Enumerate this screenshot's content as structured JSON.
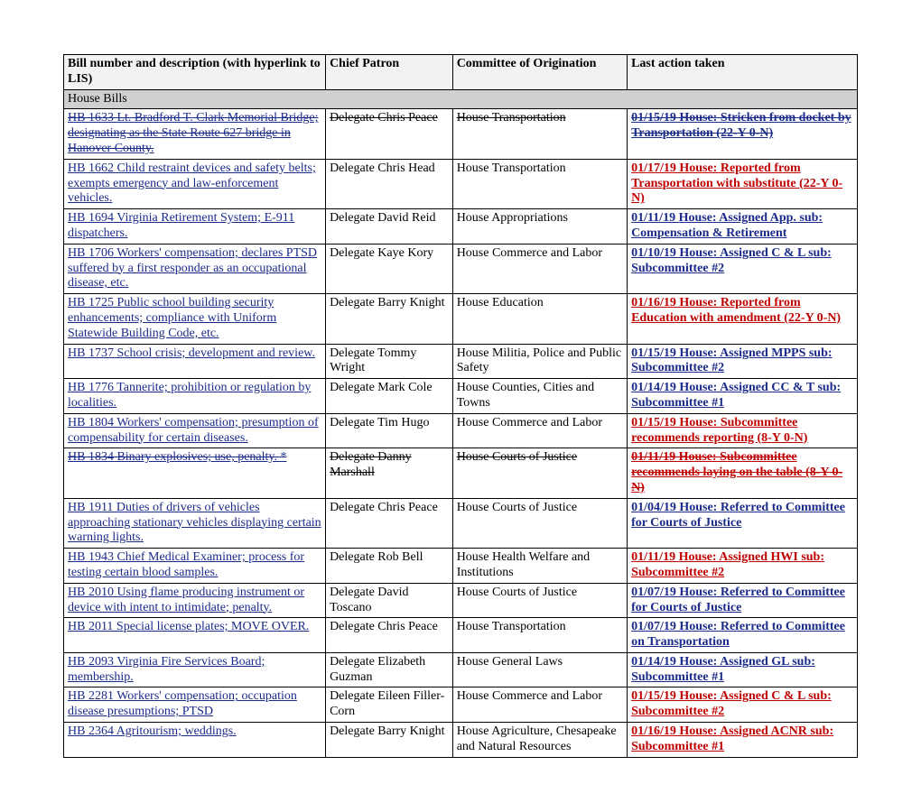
{
  "header": {
    "bill": "Bill number and description (with hyperlink to LIS)",
    "patron": "Chief Patron",
    "committee": "Committee of Origination",
    "action": "Last action taken"
  },
  "section_label": "House Bills",
  "rows": [
    {
      "bill": "HB 1633 Lt. Bradford T. Clark Memorial Bridge; designating as the State Route 627 bridge in Hanover County.",
      "patron": "Delegate Chris Peace",
      "committee": "House Transportation",
      "action": "01/15/19 House: Stricken from docket by Transportation (22-Y 0-N)",
      "bill_class": "strikethrough",
      "patron_class": "strikethrough-plain",
      "committee_class": "strikethrough-plain",
      "action_class": "action-struck"
    },
    {
      "bill": "HB 1662 Child restraint devices and safety belts; exempts emergency and law-enforcement vehicles.",
      "patron": "Delegate Chris Head",
      "committee": "House Transportation",
      "action": "01/17/19  House: Reported from Transportation with substitute (22-Y 0-N)",
      "bill_class": "bill-link",
      "action_class": "action-red"
    },
    {
      "bill": "HB 1694 Virginia Retirement System; E-911 dispatchers.",
      "patron": "Delegate David Reid",
      "committee": "House Appropriations",
      "action": "01/11/19 House: Assigned App. sub: Compensation & Retirement",
      "bill_class": "bill-link",
      "action_class": "action-link"
    },
    {
      "bill": "HB 1706 Workers' compensation; declares PTSD suffered by a first responder as an occupational disease, etc.",
      "patron": "Delegate Kaye Kory",
      "committee": "House Commerce and Labor",
      "action": "01/10/19 House: Assigned C & L sub: Subcommittee #2",
      "bill_class": "bill-link",
      "action_class": "action-link"
    },
    {
      "bill": "HB 1725 Public school building security enhancements; compliance with Uniform Statewide Building Code, etc.",
      "patron": "Delegate Barry Knight",
      "committee": "House Education",
      "action": "01/16/19  House: Reported from Education with amendment (22-Y 0-N)",
      "bill_class": "bill-link",
      "action_class": "action-red"
    },
    {
      "bill": "HB 1737 School crisis; development and review.",
      "patron": "Delegate Tommy Wright",
      "committee": "House Militia, Police and Public Safety",
      "action": "01/15/19 House: Assigned MPPS sub: Subcommittee #2",
      "bill_class": "bill-link",
      "action_class": "action-link"
    },
    {
      "bill": "HB 1776 Tannerite; prohibition or regulation by localities.",
      "patron": "Delegate Mark Cole",
      "committee": "House Counties, Cities and Towns",
      "action": "01/14/19 House: Assigned CC & T sub: Subcommittee #1",
      "bill_class": "bill-link",
      "action_class": "action-link"
    },
    {
      "bill": "HB 1804 Workers' compensation; presumption of compensability for certain diseases.",
      "patron": "Delegate Tim Hugo",
      "committee": "House Commerce and Labor",
      "action": "01/15/19 House: Subcommittee recommends reporting (8-Y 0-N)",
      "bill_class": "bill-link",
      "action_class": "action-red"
    },
    {
      "bill": "HB 1834 Binary explosives; use, penalty. *",
      "patron": "Delegate Danny Marshall",
      "committee": "House Courts of Justice",
      "action": "01/11/19 House: Subcommittee recommends laying on the table (8-Y 0-N)",
      "bill_class": "strikethrough",
      "patron_class": "strikethrough-plain",
      "committee_class": "strikethrough-plain",
      "action_class": "action-red-struck"
    },
    {
      "bill": "HB 1911 Duties of drivers of vehicles approaching stationary vehicles displaying certain warning lights.",
      "patron": "Delegate Chris Peace",
      "committee": "House Courts of Justice",
      "action": "01/04/19 House: Referred to Committee for Courts of Justice",
      "bill_class": "bill-link",
      "action_class": "action-link"
    },
    {
      "bill": "HB 1943 Chief Medical Examiner; process for testing certain blood samples.",
      "patron": "Delegate Rob Bell",
      "committee": "House Health Welfare and Institutions",
      "action": "01/11/19 House: Assigned HWI sub: Subcommittee #2",
      "bill_class": "bill-link",
      "action_class": "action-red"
    },
    {
      "bill": "HB 2010 Using flame producing instrument or device with intent to intimidate; penalty.",
      "patron": "Delegate David Toscano",
      "committee": "House Courts of Justice",
      "action": "01/07/19 House: Referred to Committee for Courts of Justice",
      "bill_class": "bill-link",
      "action_class": "action-link"
    },
    {
      "bill": "HB 2011 Special license plates; MOVE OVER.",
      "patron": "Delegate Chris Peace",
      "committee": "House Transportation",
      "action": "01/07/19 House: Referred to Committee on Transportation",
      "bill_class": "bill-link",
      "action_class": "action-link"
    },
    {
      "bill": "HB 2093 Virginia Fire Services Board; membership.",
      "patron": "Delegate Elizabeth Guzman",
      "committee": "House General Laws",
      "action": "01/14/19 House: Assigned GL sub: Subcommittee #1",
      "bill_class": "bill-link",
      "action_class": "action-link"
    },
    {
      "bill": "HB 2281 Workers' compensation; occupation disease presumptions; PTSD",
      "patron": "Delegate Eileen Filler-Corn",
      "committee": "House Commerce and Labor",
      "action": "01/15/19 House: Assigned C & L sub: Subcommittee #2",
      "bill_class": "bill-link",
      "action_class": "action-red"
    },
    {
      "bill": "HB 2364 Agritourism; weddings.",
      "patron": "Delegate Barry Knight",
      "committee": "House Agriculture, Chesapeake and Natural Resources",
      "action": "01/16/19  House: Assigned ACNR sub: Subcommittee #1",
      "bill_class": "bill-link",
      "action_class": "action-red"
    }
  ]
}
